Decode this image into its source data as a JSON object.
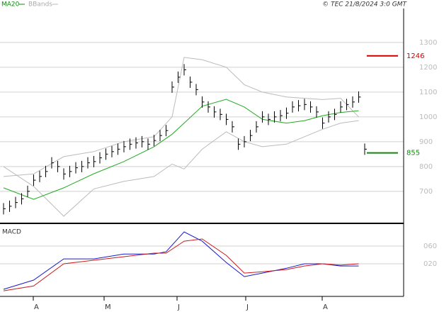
{
  "chart_data": {
    "type": "price-panel",
    "header": {
      "ma_label": "MA20",
      "bb_label": "BBands",
      "source": "© TEC 21/8/2024 3:0 GMT"
    },
    "close": [
      630,
      640,
      655,
      670,
      700,
      745,
      760,
      780,
      815,
      800,
      770,
      780,
      795,
      800,
      815,
      820,
      835,
      850,
      860,
      870,
      880,
      890,
      895,
      900,
      890,
      905,
      925,
      945,
      1120,
      1160,
      1190,
      1140,
      1110,
      1060,
      1040,
      1020,
      1010,
      990,
      960,
      890,
      900,
      925,
      960,
      1000,
      990,
      1000,
      1005,
      1015,
      1040,
      1045,
      1050,
      1040,
      1020,
      975,
      1000,
      1010,
      1040,
      1050,
      1060,
      1080,
      870
    ],
    "ma20": {
      "x": [
        0,
        5,
        10,
        15,
        20,
        25,
        28,
        30,
        33,
        37,
        40,
        43,
        47,
        50,
        53,
        56,
        59
      ],
      "values": [
        714,
        668,
        714,
        771,
        820,
        880,
        930,
        975,
        1043,
        1071,
        1040,
        990,
        975,
        985,
        1005,
        1018,
        1025
      ]
    },
    "bb_upper": {
      "x": [
        0,
        5,
        10,
        15,
        20,
        25,
        28,
        30,
        33,
        37,
        40,
        43,
        47,
        50,
        53,
        56,
        59
      ],
      "values": [
        760,
        770,
        840,
        860,
        900,
        920,
        1000,
        1240,
        1230,
        1200,
        1130,
        1100,
        1080,
        1075,
        1070,
        1075,
        1000
      ]
    },
    "bb_lower": {
      "x": [
        0,
        5,
        10,
        15,
        20,
        25,
        28,
        30,
        33,
        37,
        40,
        43,
        47,
        50,
        53,
        56,
        59
      ],
      "values": [
        800,
        720,
        600,
        710,
        740,
        760,
        810,
        790,
        870,
        940,
        900,
        880,
        890,
        920,
        950,
        975,
        985
      ]
    },
    "ylim": [
      571,
      1471
    ],
    "yticks": [
      700,
      800,
      900,
      1000,
      1100,
      1200,
      1300
    ],
    "levels": [
      {
        "value": 1246,
        "color": "#cc0000"
      },
      {
        "value": 855,
        "color": "#118811"
      }
    ],
    "macd": {
      "title": "MACD",
      "x": [
        0,
        5,
        10,
        15,
        20,
        25,
        27,
        30,
        33,
        37,
        40,
        43,
        47,
        50,
        53,
        56,
        59
      ],
      "macd": [
        -37.6,
        -16.8,
        31,
        31,
        42,
        42,
        47,
        92,
        71,
        23,
        -9,
        -1,
        10,
        20,
        20,
        15,
        15
      ],
      "signal": [
        -41,
        -30,
        20,
        28,
        36,
        44,
        44,
        71,
        76,
        39,
        -1,
        2,
        7,
        15,
        20,
        17,
        20
      ],
      "ylim": [
        -53.6,
        106.4
      ],
      "yticks": [
        {
          "value": 60,
          "label": "060"
        },
        {
          "value": 20,
          "label": "020"
        }
      ]
    },
    "months": [
      "A",
      "M",
      "J",
      "J",
      "A"
    ]
  }
}
